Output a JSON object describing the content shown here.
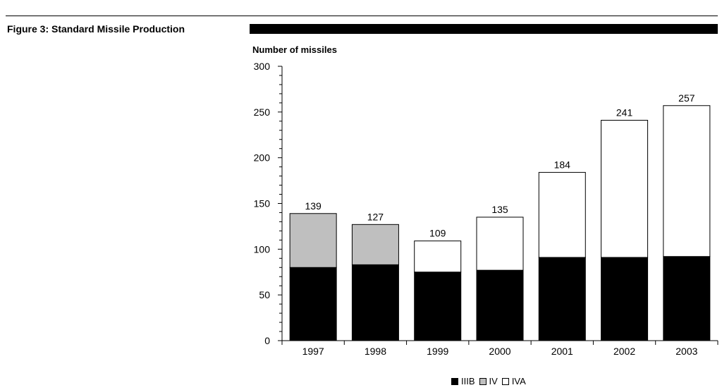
{
  "figure_title": "Figure 3: Standard Missile Production",
  "chart_data": {
    "type": "bar",
    "stacked": true,
    "ylabel": "Number of missiles",
    "xlabel": "",
    "ylim": [
      0,
      300
    ],
    "yticks": [
      0,
      50,
      100,
      150,
      200,
      250,
      300
    ],
    "grid": false,
    "legend_position": "bottom",
    "categories": [
      "1997",
      "1998",
      "1999",
      "2000",
      "2001",
      "2002",
      "2003"
    ],
    "series": [
      {
        "name": "IIIB",
        "color": "#000000",
        "values": [
          80,
          83,
          75,
          77,
          91,
          91,
          92
        ]
      },
      {
        "name": "IV",
        "color": "#bfbfbf",
        "values": [
          59,
          44,
          0,
          0,
          0,
          0,
          0
        ]
      },
      {
        "name": "IVA",
        "color": "#ffffff",
        "values": [
          0,
          0,
          34,
          58,
          93,
          150,
          165
        ]
      }
    ],
    "totals": [
      139,
      127,
      109,
      135,
      184,
      241,
      257
    ]
  }
}
